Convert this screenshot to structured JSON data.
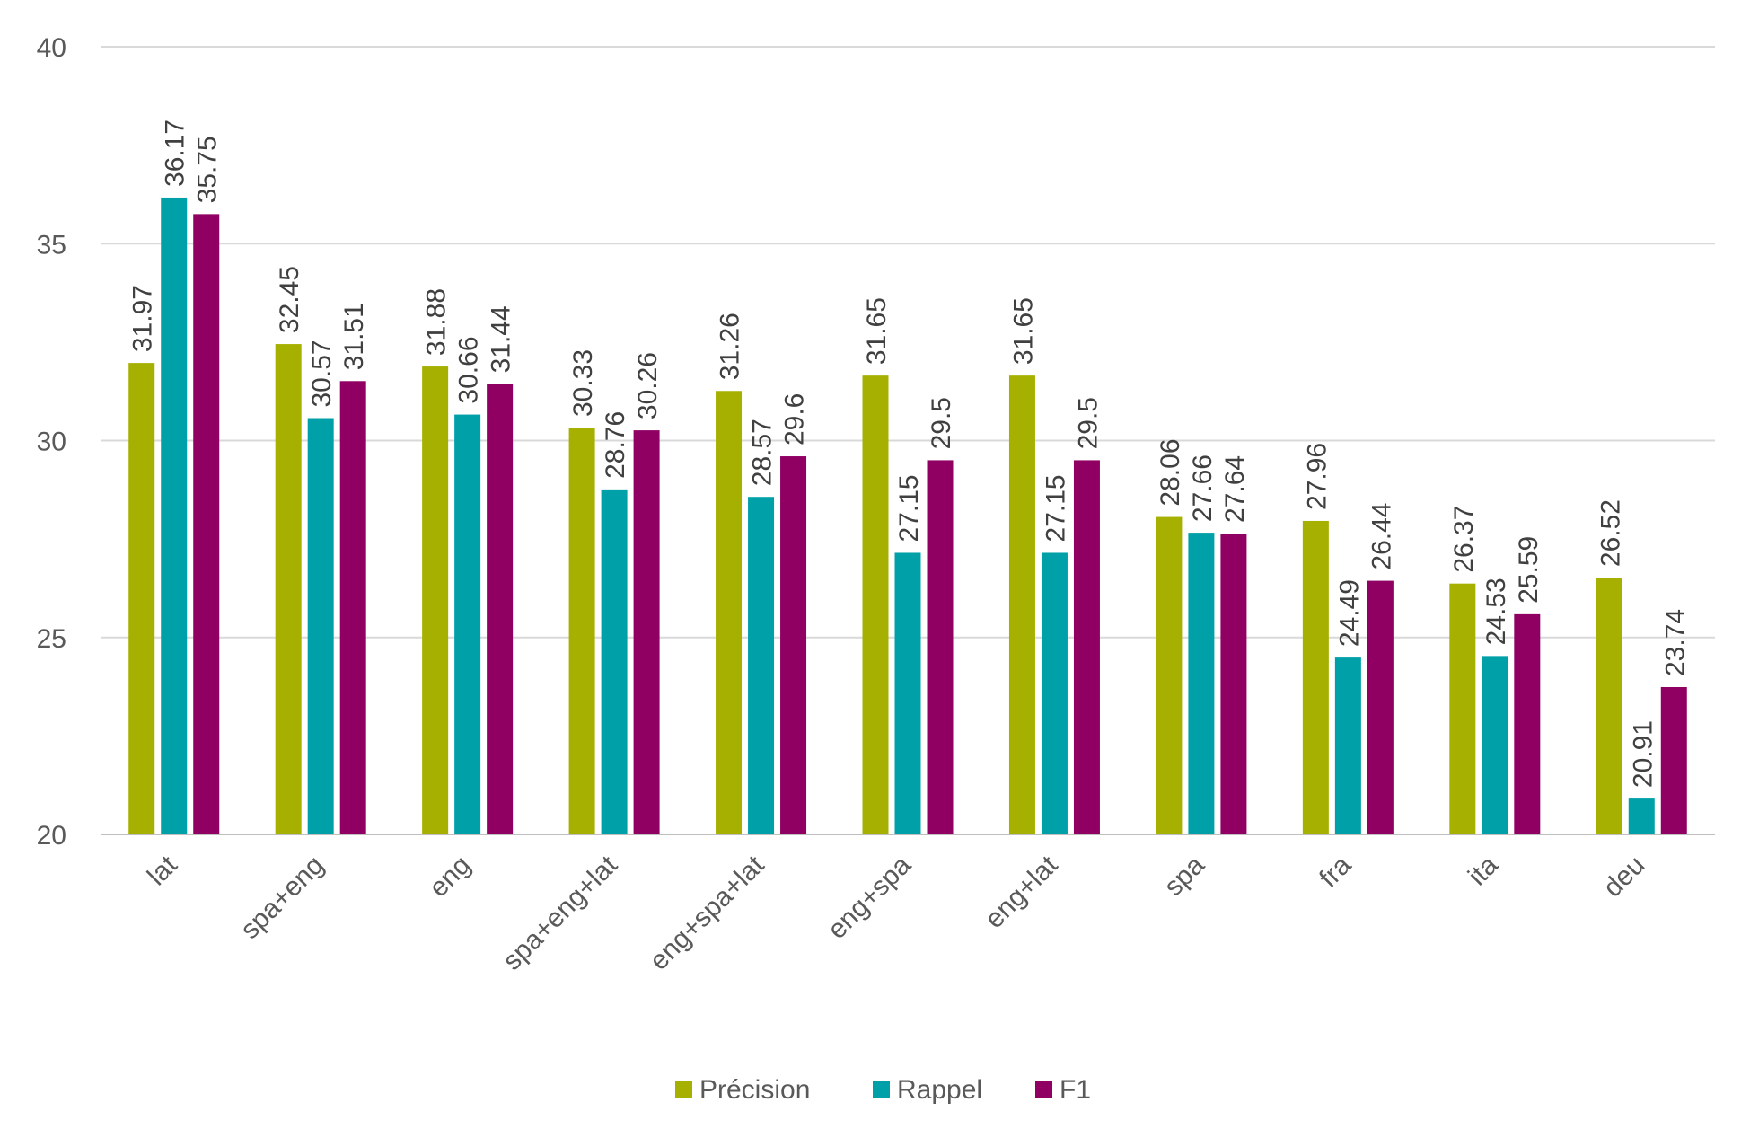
{
  "chart_data": {
    "type": "bar",
    "categories": [
      "lat",
      "spa+eng",
      "eng",
      "spa+eng+lat",
      "eng+spa+lat",
      "eng+spa",
      "eng+lat",
      "spa",
      "fra",
      "ita",
      "deu"
    ],
    "series": [
      {
        "name": "Précision",
        "color": "#a5b000",
        "values": [
          31.97,
          32.45,
          31.88,
          30.33,
          31.26,
          31.65,
          31.65,
          28.06,
          27.96,
          26.37,
          26.52
        ]
      },
      {
        "name": "Rappel",
        "color": "#00a0a8",
        "values": [
          36.17,
          30.57,
          30.66,
          28.76,
          28.57,
          27.15,
          27.15,
          27.66,
          24.49,
          24.53,
          20.91
        ]
      },
      {
        "name": "F1",
        "color": "#900063",
        "values": [
          35.75,
          31.51,
          31.44,
          30.26,
          29.6,
          29.5,
          29.5,
          27.64,
          26.44,
          25.59,
          23.74
        ]
      }
    ],
    "data_labels": [
      [
        "31.97",
        "32.45",
        "31.88",
        "30.33",
        "31.26",
        "31.65",
        "31.65",
        "28.06",
        "27.96",
        "26.37",
        "26.52"
      ],
      [
        "36.17",
        "30.57",
        "30.66",
        "28.76",
        "28.57",
        "27.15",
        "27.15",
        "27.66",
        "24.49",
        "24.53",
        "20.91"
      ],
      [
        "35.75",
        "31.51",
        "31.44",
        "30.26",
        "29.6",
        "29.5",
        "29.5",
        "27.64",
        "26.44",
        "25.59",
        "23.74"
      ]
    ],
    "yticks": [
      20,
      25,
      30,
      35,
      40
    ],
    "ytick_labels": [
      "20",
      "25",
      "30",
      "35",
      "40"
    ],
    "ylim": [
      20,
      40
    ],
    "title": "",
    "xlabel": "",
    "ylabel": "",
    "grid": true,
    "legend_position": "bottom"
  }
}
